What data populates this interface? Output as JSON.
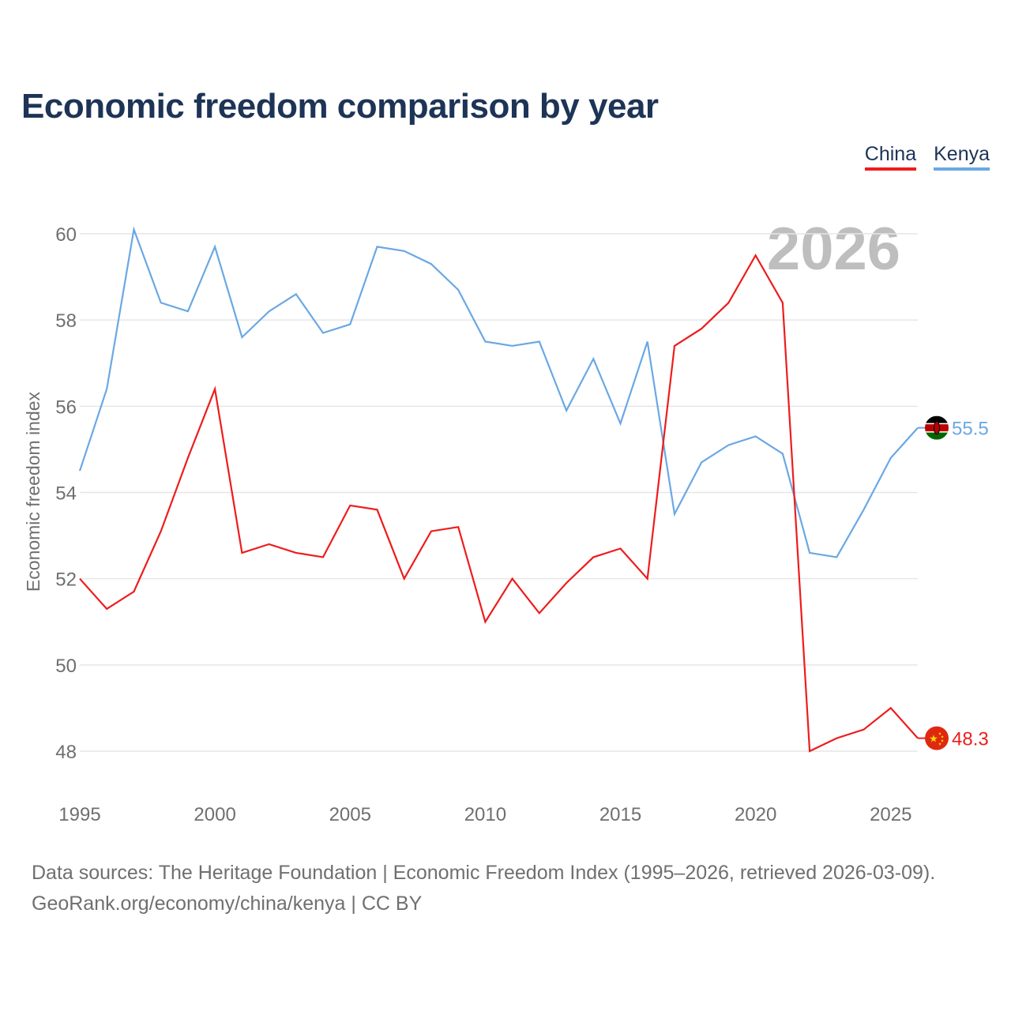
{
  "title": "Economic freedom comparison by year",
  "legend": {
    "china": "China",
    "kenya": "Kenya"
  },
  "year_badge": "2026",
  "chart_data": {
    "type": "line",
    "title": "Economic freedom comparison by year",
    "xlabel": "",
    "ylabel": "Economic freedom index",
    "x": [
      1995,
      1996,
      1997,
      1998,
      1999,
      2000,
      2001,
      2002,
      2003,
      2004,
      2005,
      2006,
      2007,
      2008,
      2009,
      2010,
      2011,
      2012,
      2013,
      2014,
      2015,
      2016,
      2017,
      2018,
      2019,
      2020,
      2021,
      2022,
      2023,
      2024,
      2025,
      2026
    ],
    "xlim": [
      1995,
      2026
    ],
    "ylim": [
      47.5,
      60.5
    ],
    "xticks": [
      1995,
      2000,
      2005,
      2010,
      2015,
      2020,
      2025
    ],
    "yticks": [
      48,
      50,
      52,
      54,
      56,
      58,
      60
    ],
    "grid": true,
    "legend_position": "top-right",
    "series": [
      {
        "name": "China",
        "color": "#ee1c1c",
        "values": [
          52.0,
          51.3,
          51.7,
          53.1,
          54.8,
          56.4,
          52.6,
          52.8,
          52.6,
          52.5,
          53.7,
          53.6,
          52.0,
          53.1,
          53.2,
          51.0,
          52.0,
          51.2,
          51.9,
          52.5,
          52.7,
          52.0,
          57.4,
          57.8,
          58.4,
          59.5,
          58.4,
          48.0,
          48.3,
          48.5,
          49.0,
          48.3
        ],
        "end_label": "48.3",
        "flag": "china-flag"
      },
      {
        "name": "Kenya",
        "color": "#6aa8e4",
        "values": [
          54.5,
          56.4,
          60.1,
          58.4,
          58.2,
          59.7,
          57.6,
          58.2,
          58.6,
          57.7,
          57.9,
          59.7,
          59.6,
          59.3,
          58.7,
          57.5,
          57.4,
          57.5,
          55.9,
          57.1,
          55.6,
          57.5,
          53.5,
          54.7,
          55.1,
          55.3,
          54.9,
          52.6,
          52.5,
          53.6,
          54.8,
          55.5
        ],
        "end_label": "55.5",
        "flag": "kenya-flag"
      }
    ]
  },
  "footer": {
    "line1": "Data sources: The Heritage Foundation | Economic Freedom Index (1995–2026, retrieved 2026-03-09).",
    "line2": "GeoRank.org/economy/china/kenya | CC BY"
  }
}
